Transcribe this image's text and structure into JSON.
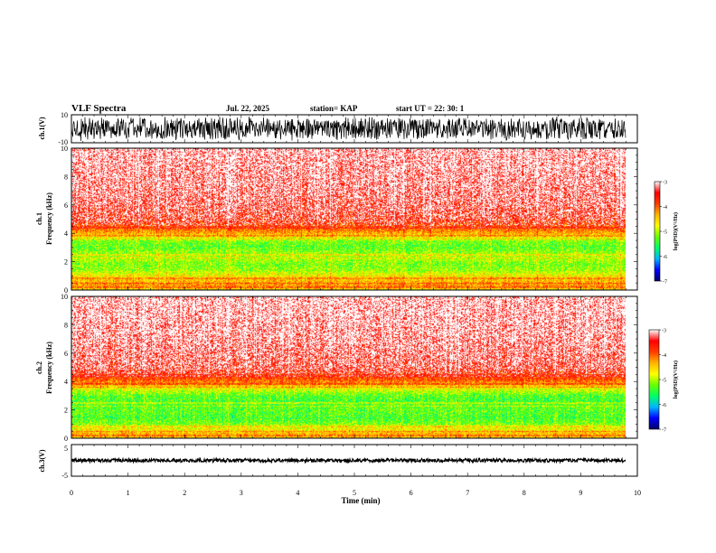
{
  "header": {
    "title": "VLF Spectra",
    "date": "Jul. 22, 2025",
    "station": "station= KAP",
    "start_ut": "start UT =  22: 30: 1"
  },
  "chart_data": [
    {
      "type": "line",
      "panel": "ch1-waveform",
      "ylabel": "ch.1(V)",
      "ylim": [
        -10,
        10
      ],
      "yticks": [
        "10",
        "-10"
      ],
      "xlim": [
        0,
        10
      ],
      "data_end_min": 9.8,
      "description_of_series": "dense noise waveform spanning roughly -8 to 9 V"
    },
    {
      "type": "heatmap",
      "panel": "ch1-spectrogram",
      "ylabel_line1": "ch.1",
      "ylabel_line2": "Frequency (kHz)",
      "ylim": [
        0,
        10
      ],
      "yticks": [
        "0",
        "2",
        "4",
        "6",
        "8",
        "10"
      ],
      "xlim": [
        0,
        10
      ],
      "data_end_min": 9.8,
      "colorbar": {
        "label": "log(PSD)(V²/Hz)",
        "range": [
          -7,
          -3
        ],
        "ticks": [
          "-3",
          "-4",
          "-5",
          "-6",
          "-7"
        ]
      },
      "frequency_profile_kHz": [
        [
          0.0,
          -4.6
        ],
        [
          0.3,
          -4.2
        ],
        [
          0.6,
          -4.4
        ],
        [
          1.0,
          -4.7
        ],
        [
          1.4,
          -5.1
        ],
        [
          1.8,
          -5.2
        ],
        [
          2.2,
          -5.0
        ],
        [
          2.6,
          -5.1
        ],
        [
          3.0,
          -5.3
        ],
        [
          3.4,
          -5.2
        ],
        [
          3.8,
          -4.6
        ],
        [
          4.2,
          -4.1
        ],
        [
          4.6,
          -3.85
        ],
        [
          5.0,
          -3.6
        ],
        [
          6.0,
          -3.45
        ],
        [
          7.0,
          -3.35
        ],
        [
          8.0,
          -3.3
        ],
        [
          9.0,
          -3.25
        ],
        [
          10.0,
          -3.2
        ]
      ]
    },
    {
      "type": "heatmap",
      "panel": "ch2-spectrogram",
      "ylabel_line1": "ch.2",
      "ylabel_line2": "Frequency (kHz)",
      "ylim": [
        0,
        10
      ],
      "yticks": [
        "0",
        "2",
        "4",
        "6",
        "8",
        "10"
      ],
      "xlim": [
        0,
        10
      ],
      "data_end_min": 9.8,
      "colorbar": {
        "label": "log(PSD)(V²/Hz)",
        "range": [
          -7,
          -3
        ],
        "ticks": [
          "-3",
          "-4",
          "-5",
          "-6",
          "-7"
        ]
      },
      "frequency_profile_kHz": [
        [
          0.0,
          -4.5
        ],
        [
          0.3,
          -4.4
        ],
        [
          0.6,
          -4.7
        ],
        [
          1.0,
          -5.2
        ],
        [
          1.4,
          -5.4
        ],
        [
          1.8,
          -5.3
        ],
        [
          2.2,
          -5.3
        ],
        [
          2.6,
          -5.4
        ],
        [
          3.0,
          -5.3
        ],
        [
          3.4,
          -4.9
        ],
        [
          3.8,
          -4.3
        ],
        [
          4.2,
          -3.9
        ],
        [
          4.6,
          -3.7
        ],
        [
          5.0,
          -3.5
        ],
        [
          6.0,
          -3.4
        ],
        [
          7.0,
          -3.3
        ],
        [
          8.0,
          -3.25
        ],
        [
          9.0,
          -3.2
        ],
        [
          10.0,
          -3.2
        ]
      ]
    },
    {
      "type": "line",
      "panel": "ch3-waveform",
      "ylabel": "ch.3(V)",
      "ylim": [
        -5,
        5
      ],
      "yticks": [
        "5",
        "-5"
      ],
      "xlim": [
        0,
        10
      ],
      "data_end_min": 9.8,
      "baseline_V": 0.0
    },
    {
      "type": "axis",
      "panel": "time-axis",
      "xlabel": "Time (min)",
      "xticks": [
        "0",
        "1",
        "2",
        "3",
        "4",
        "5",
        "6",
        "7",
        "8",
        "9",
        "10"
      ]
    }
  ],
  "colors": {
    "colormap": [
      "#000066",
      "#0000ff",
      "#00b4ff",
      "#00ff66",
      "#66ff00",
      "#ffff00",
      "#ffb400",
      "#ff3c00",
      "#ff0000",
      "#ffffff"
    ]
  }
}
